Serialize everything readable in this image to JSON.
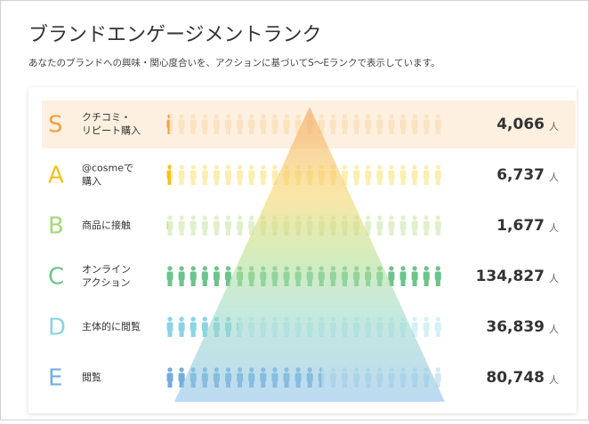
{
  "header": {
    "title": "ブランドエンゲージメントランク",
    "subtitle": "あなたのブランドへの興味・関心度合いを、アクションに基づいてS〜Eランクで表示しています。"
  },
  "ranks": [
    {
      "letter": "S",
      "label": [
        "クチコミ・",
        "リピート購入"
      ],
      "count": "4,066",
      "unit": "人"
    },
    {
      "letter": "A",
      "label": [
        "@cosmeで",
        "購入"
      ],
      "count": "6,737",
      "unit": "人"
    },
    {
      "letter": "B",
      "label": [
        "商品に接触"
      ],
      "count": "1,677",
      "unit": "人"
    },
    {
      "letter": "C",
      "label": [
        "オンライン",
        "アクション"
      ],
      "count": "134,827",
      "unit": "人"
    },
    {
      "letter": "D",
      "label": [
        "主体的に閲覧"
      ],
      "count": "36,839",
      "unit": "人"
    },
    {
      "letter": "E",
      "label": [
        "閲覧"
      ],
      "count": "80,748",
      "unit": "人"
    }
  ]
}
